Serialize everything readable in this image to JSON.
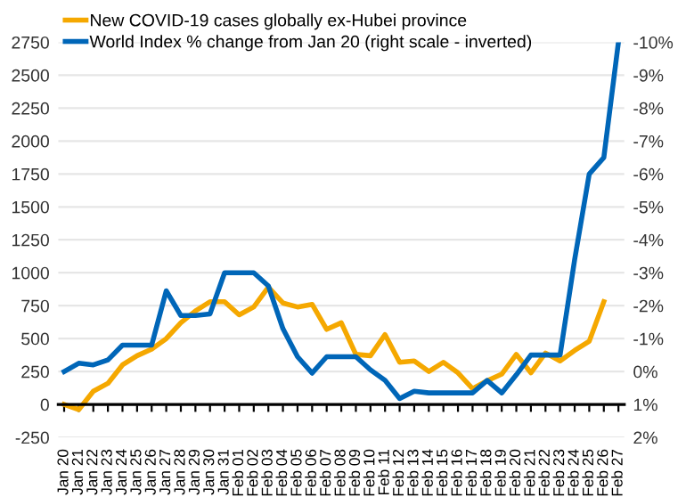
{
  "chart_data": {
    "type": "line",
    "categories": [
      "Jan 20",
      "Jan 21",
      "Jan 22",
      "Jan 23",
      "Jan 24",
      "Jan 25",
      "Jan 26",
      "Jan 27",
      "Jan 28",
      "Jan 29",
      "Jan 30",
      "Jan 31",
      "Feb 01",
      "Feb 02",
      "Feb 03",
      "Feb 04",
      "Feb 05",
      "Feb 06",
      "Feb 07",
      "Feb 08",
      "Feb 09",
      "Feb 10",
      "Feb 11",
      "Feb 12",
      "Feb 13",
      "Feb 14",
      "Feb 15",
      "Feb 16",
      "Feb 17",
      "Feb 18",
      "Feb 19",
      "Feb 20",
      "Feb 21",
      "Feb 22",
      "Feb 23",
      "Feb 24",
      "Feb 25",
      "Feb 26",
      "Feb 27"
    ],
    "series": [
      {
        "name": "New COVID-19 cases globally ex-Hubei province",
        "color": "#f5a800",
        "values": [
          0,
          -40,
          100,
          160,
          300,
          370,
          420,
          500,
          620,
          710,
          780,
          780,
          680,
          740,
          890,
          770,
          740,
          760,
          570,
          620,
          380,
          370,
          530,
          320,
          330,
          250,
          320,
          240,
          120,
          180,
          230,
          380,
          240,
          390,
          330,
          410,
          480,
          780,
          null
        ]
      },
      {
        "name": "World Index % change from Jan 20 (right scale - inverted)",
        "color": "#0066b8",
        "axis": "y2",
        "values": [
          0,
          -0.25,
          -0.2,
          -0.35,
          -0.8,
          -0.8,
          -0.8,
          -2.45,
          -1.7,
          -1.7,
          -1.75,
          -3,
          -3,
          -3,
          -2.6,
          -1.3,
          -0.45,
          0.05,
          -0.45,
          -0.45,
          -0.45,
          -0.05,
          0.27,
          0.82,
          0.6,
          0.65,
          0.65,
          0.65,
          0.65,
          0.27,
          0.65,
          0.1,
          -0.5,
          -0.5,
          -0.5,
          -3.4,
          -6,
          -6.5,
          -10
        ]
      }
    ],
    "ylim": [
      -250,
      2750
    ],
    "yticks": [
      -250,
      0,
      250,
      500,
      750,
      1000,
      1250,
      1500,
      1750,
      2000,
      2250,
      2500,
      2750
    ],
    "y2lim": [
      2,
      -10
    ],
    "y2ticks": [
      {
        "value": 2,
        "label": "2%"
      },
      {
        "value": 1,
        "label": "1%"
      },
      {
        "value": 0,
        "label": "0%"
      },
      {
        "value": -1,
        "label": "-1%"
      },
      {
        "value": -2,
        "label": "-2%"
      },
      {
        "value": -3,
        "label": "-3%"
      },
      {
        "value": -4,
        "label": "-4%"
      },
      {
        "value": -5,
        "label": "-5%"
      },
      {
        "value": -6,
        "label": "-6%"
      },
      {
        "value": -7,
        "label": "-7%"
      },
      {
        "value": -8,
        "label": "-8%"
      },
      {
        "value": -9,
        "label": "-9%"
      },
      {
        "value": -10,
        "label": "-10%"
      }
    ],
    "grid": "y",
    "legend": "top left",
    "marker": "none",
    "line_style": "solid"
  }
}
